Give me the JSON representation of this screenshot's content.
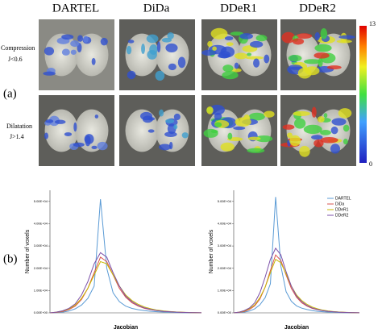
{
  "panel_a": {
    "label": "(a)",
    "columns": [
      "DARTEL",
      "DiDa",
      "DDeR1",
      "DDeR2"
    ],
    "rows": [
      {
        "label": "Compression",
        "condition": "J<0.6"
      },
      {
        "label": "Dilatation",
        "condition": "J>1.4"
      }
    ],
    "colorbar": {
      "max_label": "13",
      "min_label": "0"
    }
  },
  "panel_b": {
    "label": "(b)"
  },
  "chart_data": [
    {
      "type": "line",
      "xlabel": "Jacobian",
      "ylabel": "Number of voxels",
      "x": [
        0.2,
        0.3,
        0.4,
        0.5,
        0.6,
        0.7,
        0.8,
        0.9,
        1.0,
        1.1,
        1.2,
        1.3,
        1.4,
        1.5,
        1.6,
        1.7,
        1.8,
        1.9,
        2.0,
        2.1,
        2.2,
        2.3,
        2.4,
        2.5,
        2.6
      ],
      "xlim": [
        0.2,
        2.6
      ],
      "ylim": [
        0,
        55000
      ],
      "yticks": [
        {
          "value": 0,
          "label": "0.00E+00"
        },
        {
          "value": 10000,
          "label": "1.00E+04"
        },
        {
          "value": 20000,
          "label": "2.00E+04"
        },
        {
          "value": 30000,
          "label": "3.00E+04"
        },
        {
          "value": 40000,
          "label": "4.00E+04"
        },
        {
          "value": 50000,
          "label": "5.00E+04"
        }
      ],
      "series": [
        {
          "color": "#5b9bd5",
          "values": [
            0,
            100,
            300,
            800,
            1800,
            3500,
            6500,
            12000,
            51000,
            20000,
            9000,
            5000,
            3000,
            2000,
            1400,
            1000,
            700,
            500,
            350,
            250,
            170,
            110,
            70,
            40,
            20
          ]
        },
        {
          "color": "#d9534f",
          "values": [
            0,
            200,
            600,
            1500,
            3000,
            6000,
            11000,
            18000,
            25000,
            23000,
            17000,
            11000,
            7000,
            4500,
            3000,
            2000,
            1400,
            1000,
            700,
            500,
            350,
            230,
            150,
            90,
            50
          ]
        },
        {
          "color": "#c9b800",
          "values": [
            0,
            300,
            800,
            1800,
            3500,
            6500,
            11000,
            17000,
            23000,
            22000,
            17000,
            12000,
            8000,
            5500,
            3800,
            2600,
            1800,
            1200,
            850,
            600,
            400,
            270,
            180,
            110,
            60
          ]
        },
        {
          "color": "#7b4fa8",
          "values": [
            0,
            300,
            900,
            2000,
            4000,
            8000,
            14000,
            22000,
            27000,
            25000,
            18000,
            12000,
            7500,
            5000,
            3300,
            2200,
            1500,
            1000,
            700,
            480,
            320,
            210,
            130,
            80,
            40
          ]
        }
      ]
    },
    {
      "type": "line",
      "xlabel": "Jacobian",
      "ylabel": "Number of voxels",
      "legend": "top-right",
      "x": [
        0.2,
        0.3,
        0.4,
        0.5,
        0.6,
        0.7,
        0.8,
        0.9,
        1.0,
        1.1,
        1.2,
        1.3,
        1.4,
        1.5,
        1.6,
        1.7,
        1.8,
        1.9,
        2.0,
        2.1,
        2.2,
        2.3,
        2.4,
        2.5,
        2.6
      ],
      "xlim": [
        0.2,
        2.6
      ],
      "ylim": [
        0,
        55000
      ],
      "yticks": [
        {
          "value": 0,
          "label": "0.00E+00"
        },
        {
          "value": 10000,
          "label": "1.00E+04"
        },
        {
          "value": 20000,
          "label": "2.00E+04"
        },
        {
          "value": 30000,
          "label": "3.00E+04"
        },
        {
          "value": 40000,
          "label": "4.00E+04"
        },
        {
          "value": 50000,
          "label": "5.00E+04"
        }
      ],
      "series": [
        {
          "name": "DARTEL",
          "color": "#5b9bd5",
          "values": [
            0,
            100,
            300,
            800,
            1800,
            3600,
            6800,
            13000,
            52000,
            21000,
            9500,
            5200,
            3100,
            2100,
            1500,
            1000,
            700,
            500,
            350,
            250,
            170,
            110,
            70,
            40,
            20
          ]
        },
        {
          "name": "DiDa",
          "color": "#d9534f",
          "values": [
            0,
            200,
            600,
            1500,
            3100,
            6200,
            11500,
            19000,
            26000,
            23500,
            17000,
            11000,
            7000,
            4500,
            3000,
            2000,
            1400,
            1000,
            700,
            500,
            350,
            230,
            150,
            90,
            50
          ]
        },
        {
          "name": "DDeR1",
          "color": "#c9b800",
          "values": [
            0,
            300,
            800,
            1900,
            3600,
            6800,
            11500,
            18000,
            24000,
            22500,
            17500,
            12000,
            8000,
            5500,
            3800,
            2600,
            1800,
            1200,
            850,
            600,
            400,
            270,
            180,
            110,
            60
          ]
        },
        {
          "name": "DDeR2",
          "color": "#7b4fa8",
          "values": [
            0,
            300,
            1000,
            2200,
            4500,
            9000,
            16000,
            24000,
            29000,
            26000,
            18500,
            12000,
            7500,
            5000,
            3300,
            2200,
            1500,
            1000,
            700,
            480,
            320,
            210,
            130,
            80,
            40
          ]
        }
      ]
    }
  ]
}
